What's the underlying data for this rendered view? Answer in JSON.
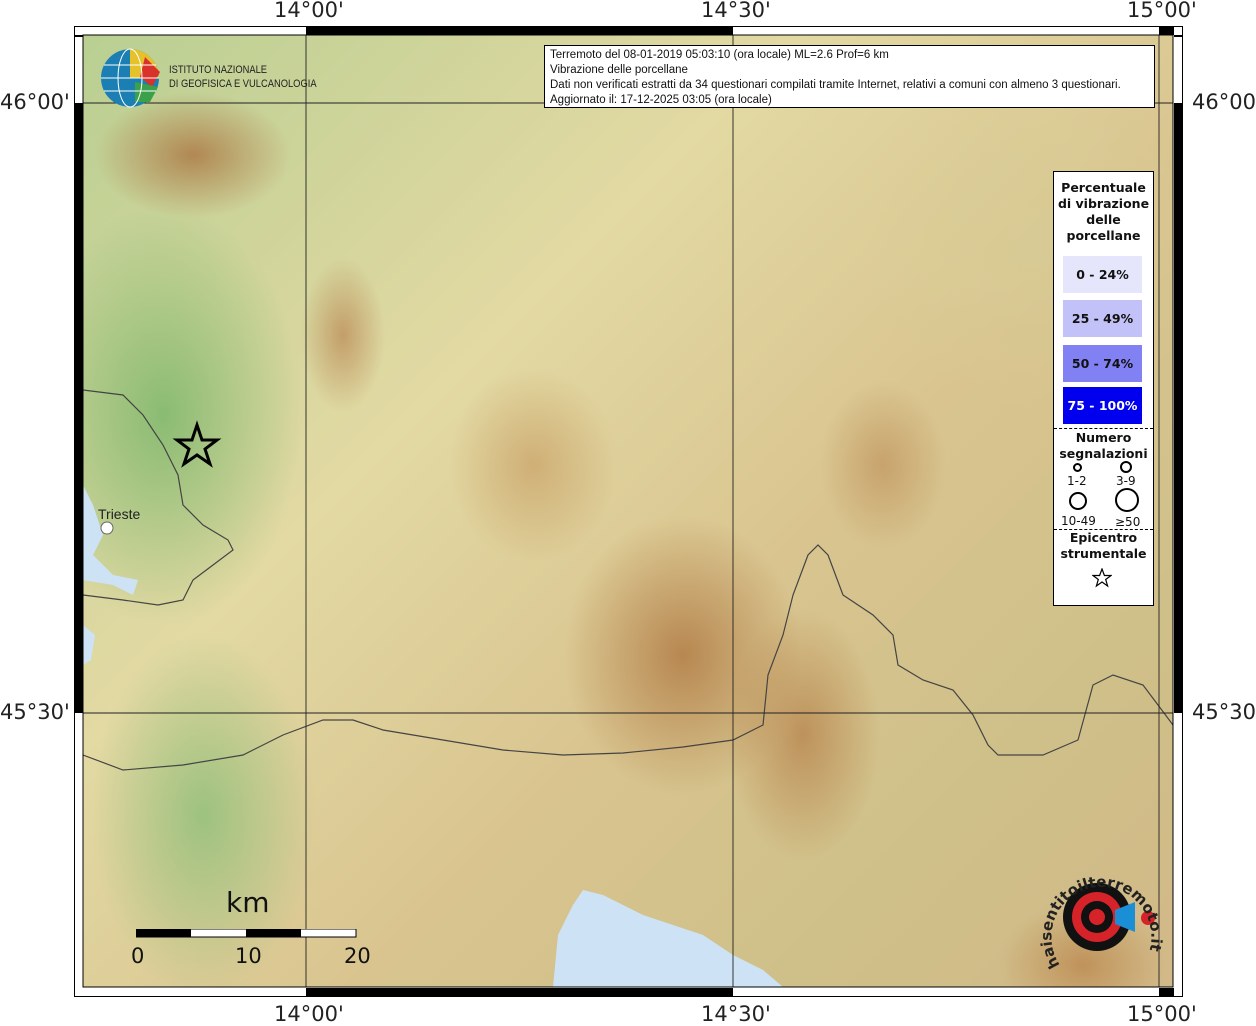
{
  "map": {
    "lon_ticks": [
      "14°00'",
      "14°30'",
      "15°00'"
    ],
    "lat_ticks": [
      "46°00'",
      "45°30'"
    ],
    "city": "Trieste",
    "colors": {
      "sea": "#cde3f5",
      "border": "#444444",
      "grid": "#222222"
    }
  },
  "header": {
    "lines": [
      "Terremoto del 08-01-2019 05:03:10 (ora locale) ML=2.6 Prof=6 km",
      "Vibrazione delle porcellane",
      "Dati non verificati estratti da 34 questionari compilati tramite Internet, relativi a comuni con almeno 3 questionari.",
      "Aggiornato il: 17-12-2025 03:05 (ora locale)"
    ]
  },
  "logo": {
    "line1": "ISTITUTO NAZIONALE",
    "line2": "DI GEOFISICA E VULCANOLOGIA"
  },
  "logo2": {
    "text": "haisentitoilterremoto.it www."
  },
  "legend": {
    "title_lines": [
      "Percentuale",
      "di vibrazione",
      "delle",
      "porcellane"
    ],
    "classes": [
      {
        "label": "0 - 24%",
        "color": "#e5e5fb"
      },
      {
        "label": "25 - 49%",
        "color": "#c2c2f8"
      },
      {
        "label": "50 - 74%",
        "color": "#8181f4"
      },
      {
        "label": "75 - 100%",
        "color": "#0000ee"
      }
    ],
    "count_title_lines": [
      "Numero",
      "segnalazioni"
    ],
    "counts": [
      "1-2",
      "3-9",
      "10-49",
      "≥50"
    ],
    "epicenter_lines": [
      "Epicentro",
      "strumentale"
    ]
  },
  "scalebar": {
    "unit": "km",
    "labels": [
      "0",
      "10",
      "20"
    ]
  }
}
